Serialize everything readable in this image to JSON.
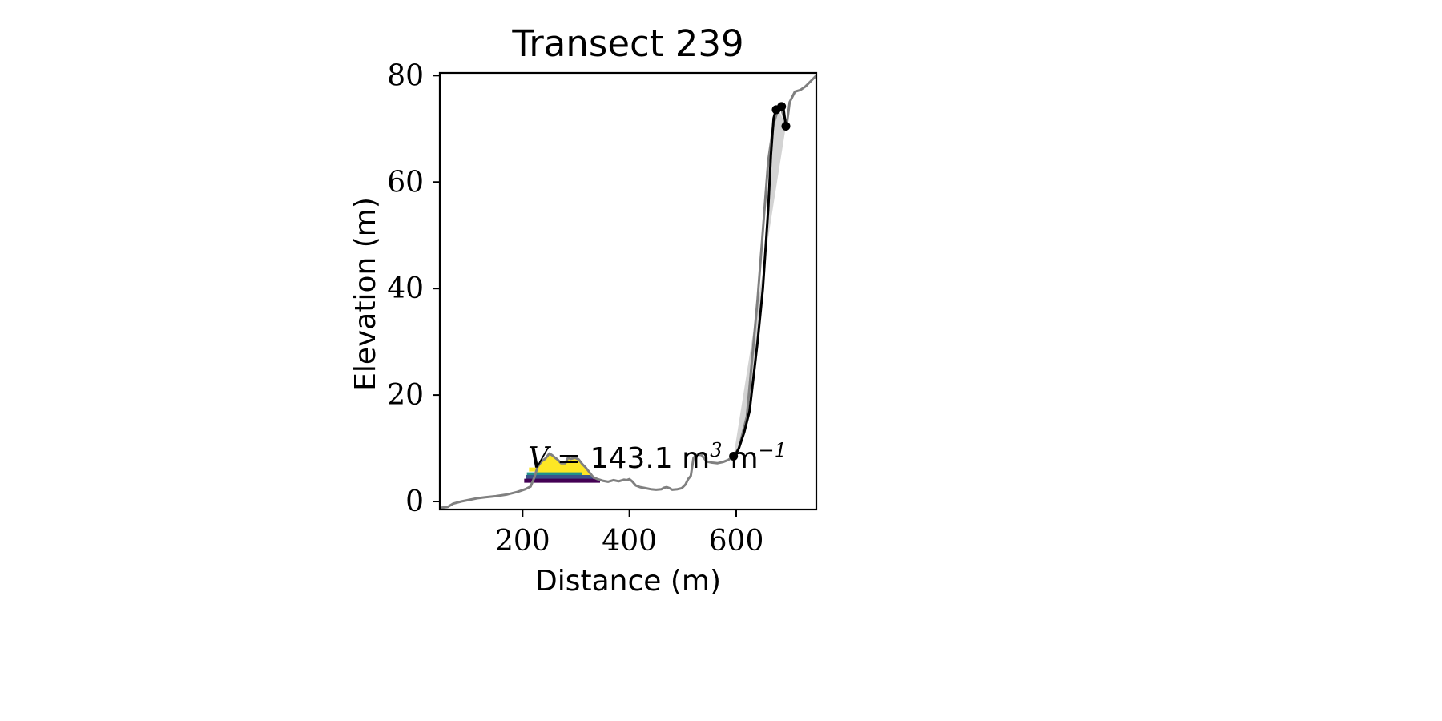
{
  "chart_data": {
    "type": "line",
    "title": "Transect 239",
    "xlabel": "Distance (m)",
    "ylabel": "Elevation (m)",
    "xlim": [
      45,
      750
    ],
    "ylim": [
      -1.5,
      80.5
    ],
    "xticks": [
      200,
      400,
      600
    ],
    "yticks": [
      0,
      20,
      40,
      60,
      80
    ],
    "grid": false,
    "legend": "none",
    "colors": {
      "profile": "#808080",
      "cliff": "#000000",
      "cliff_fill": "#d3d3d3",
      "volume_fill": "#fde725",
      "levels": [
        "#fde725",
        "#21918c",
        "#3b528b",
        "#440154"
      ]
    },
    "series": [
      {
        "role": "terrain-profile",
        "x": [
          45,
          60,
          70,
          85,
          100,
          115,
          130,
          150,
          170,
          190,
          205,
          215,
          222,
          228,
          235,
          242,
          250,
          255,
          260,
          265,
          272,
          280,
          285,
          290,
          298,
          305,
          312,
          318,
          325,
          332,
          340,
          350,
          360,
          370,
          380,
          390,
          395,
          400,
          405,
          412,
          420,
          430,
          440,
          450,
          460,
          465,
          470,
          475,
          480,
          490,
          498,
          505,
          510,
          515,
          520,
          528,
          535,
          545,
          555,
          565,
          575,
          585,
          595,
          605,
          620,
          640,
          660,
          670,
          678,
          685,
          690,
          695,
          700,
          705,
          710,
          720,
          730,
          740,
          750
        ],
        "y": [
          -1.2,
          -1.0,
          -0.4,
          0.0,
          0.3,
          0.6,
          0.8,
          1.0,
          1.3,
          1.8,
          2.3,
          2.8,
          4.5,
          6.5,
          7.5,
          8.0,
          9.0,
          8.7,
          8.3,
          7.9,
          7.2,
          7.2,
          8.2,
          8.0,
          8.2,
          7.9,
          7.0,
          6.4,
          5.5,
          4.6,
          4.2,
          3.9,
          3.7,
          4.0,
          3.8,
          4.1,
          4.0,
          4.2,
          3.8,
          3.0,
          2.7,
          2.5,
          2.3,
          2.2,
          2.3,
          2.6,
          2.7,
          2.5,
          2.2,
          2.3,
          2.5,
          3.2,
          4.2,
          4.8,
          8.2,
          8.8,
          8.7,
          7.5,
          7.3,
          7.2,
          7.4,
          7.8,
          8.5,
          10.0,
          16.0,
          38.0,
          64.0,
          71.0,
          73.5,
          73.6,
          72.0,
          71.0,
          75.0,
          76.0,
          77.0,
          77.3,
          78.0,
          79.0,
          80.0
        ]
      },
      {
        "role": "cliff-face",
        "x": [
          595,
          600,
          605,
          615,
          625,
          640,
          650,
          660,
          665,
          670,
          675,
          678,
          682,
          688,
          693
        ],
        "y": [
          8.5,
          9.0,
          10.0,
          13.0,
          17.0,
          30.0,
          40.0,
          55.0,
          65.0,
          72.0,
          73.8,
          74.0,
          74.5,
          74.2,
          70.5
        ]
      }
    ],
    "markers": [
      {
        "x": 595,
        "y": 8.5
      },
      {
        "x": 675,
        "y": 73.6
      },
      {
        "x": 685,
        "y": 74.2
      },
      {
        "x": 693,
        "y": 70.5
      }
    ],
    "cliff_fill_polygon": {
      "x": [
        595,
        605,
        615,
        625,
        640,
        650,
        660,
        665,
        670,
        675,
        678,
        693,
        693,
        595
      ],
      "y": [
        8.5,
        10.0,
        13.0,
        17.0,
        30.0,
        40.0,
        55.0,
        65.0,
        72.0,
        73.8,
        74.0,
        70.5,
        70.5,
        8.5
      ]
    },
    "volume_fill_polygon": {
      "x": [
        222,
        228,
        235,
        242,
        250,
        255,
        260,
        265,
        272,
        280,
        285,
        290,
        298,
        305,
        312,
        318,
        325,
        332,
        222
      ],
      "y": [
        4.5,
        6.5,
        7.5,
        8.0,
        9.0,
        8.7,
        8.3,
        7.9,
        7.2,
        7.2,
        8.2,
        8.0,
        8.2,
        7.9,
        7.0,
        6.4,
        5.5,
        4.6,
        4.6
      ]
    },
    "water_levels": [
      {
        "y": 6.0,
        "x0": 212,
        "x1": 238
      },
      {
        "y": 5.1,
        "x0": 208,
        "x1": 312
      },
      {
        "y": 4.6,
        "x0": 206,
        "x1": 332
      },
      {
        "y": 3.9,
        "x0": 203,
        "x1": 345
      }
    ],
    "annotation": {
      "x": 210,
      "y": 6.3,
      "symbol": "V",
      "subscript": "",
      "value_text": "= 143.1 m",
      "exp1": "3",
      "unit2": "m",
      "exp2": "−1"
    }
  }
}
